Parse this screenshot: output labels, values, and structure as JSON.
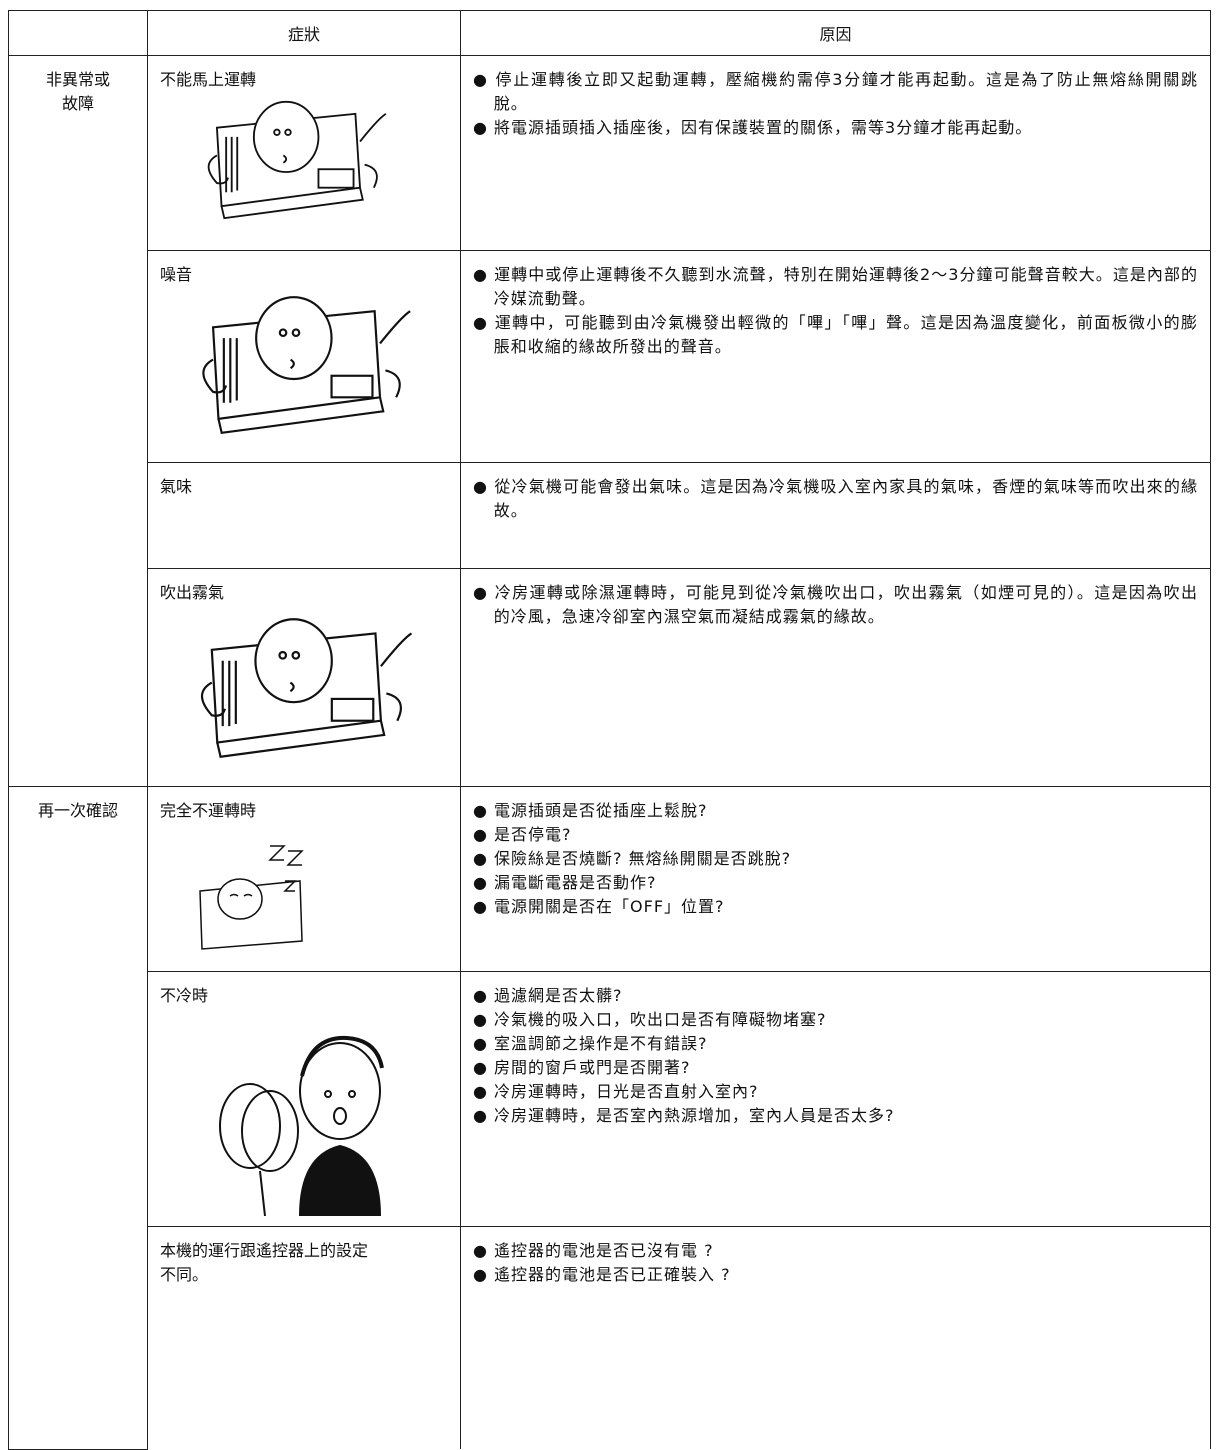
{
  "header": {
    "symptom": "症狀",
    "cause": "原因"
  },
  "groups": [
    {
      "label": "非異常或\n故障",
      "items": [
        {
          "symptom": "不能馬上運轉",
          "causes": [
            "● 停止運轉後立即又起動運轉，壓縮機約需停3分鐘才能再起動。這是為了防止無熔絲開關跳脫。",
            "● 將電源插頭插入插座後，因有保護裝置的關係，需等3分鐘才能再起動。"
          ]
        },
        {
          "symptom": "噪音",
          "causes": [
            "● 運轉中或停止運轉後不久聽到水流聲，特別在開始運轉後2～3分鐘可能聲音較大。這是內部的冷媒流動聲。",
            "● 運轉中，可能聽到由冷氣機發出輕微的「嗶」「嗶」聲。這是因為溫度變化，前面板微小的膨脹和收縮的緣故所發出的聲音。"
          ]
        },
        {
          "symptom": "氣味",
          "causes": [
            "● 從冷氣機可能會發出氣味。這是因為冷氣機吸入室內家具的氣味，香煙的氣味等而吹出來的緣故。"
          ]
        },
        {
          "symptom": "吹出霧氣",
          "causes": [
            "● 冷房運轉或除濕運轉時，可能見到從冷氣機吹出口，吹出霧氣（如煙可見的）。這是因為吹出的冷風，急速冷卻室內濕空氣而凝結成霧氣的緣故。"
          ]
        }
      ]
    },
    {
      "label": "再一次確認",
      "items": [
        {
          "symptom": "完全不運轉時",
          "causes": [
            "● 電源插頭是否從插座上鬆脫?",
            "● 是否停電?",
            "● 保險絲是否燒斷? 無熔絲開關是否跳脫?",
            "● 漏電斷電器是否動作?",
            "● 電源開關是否在「OFF」位置?"
          ]
        },
        {
          "symptom": "不冷時",
          "causes": [
            "● 過濾網是否太髒?",
            "● 冷氣機的吸入口，吹出口是否有障礙物堵塞?",
            "● 室溫調節之操作是不有錯誤?",
            "● 房間的窗戶或門是否開著?",
            "● 冷房運轉時，日光是否直射入室內?",
            "● 冷房運轉時，是否室內熱源增加，室內人員是否太多?"
          ]
        },
        {
          "symptom": "本機的運行跟遙控器上的設定\n不同。",
          "causes": [
            "● 遙控器的電池是否已沒有電 ?",
            "● 遙控器的電池是否已正確裝入 ?"
          ]
        }
      ]
    }
  ]
}
